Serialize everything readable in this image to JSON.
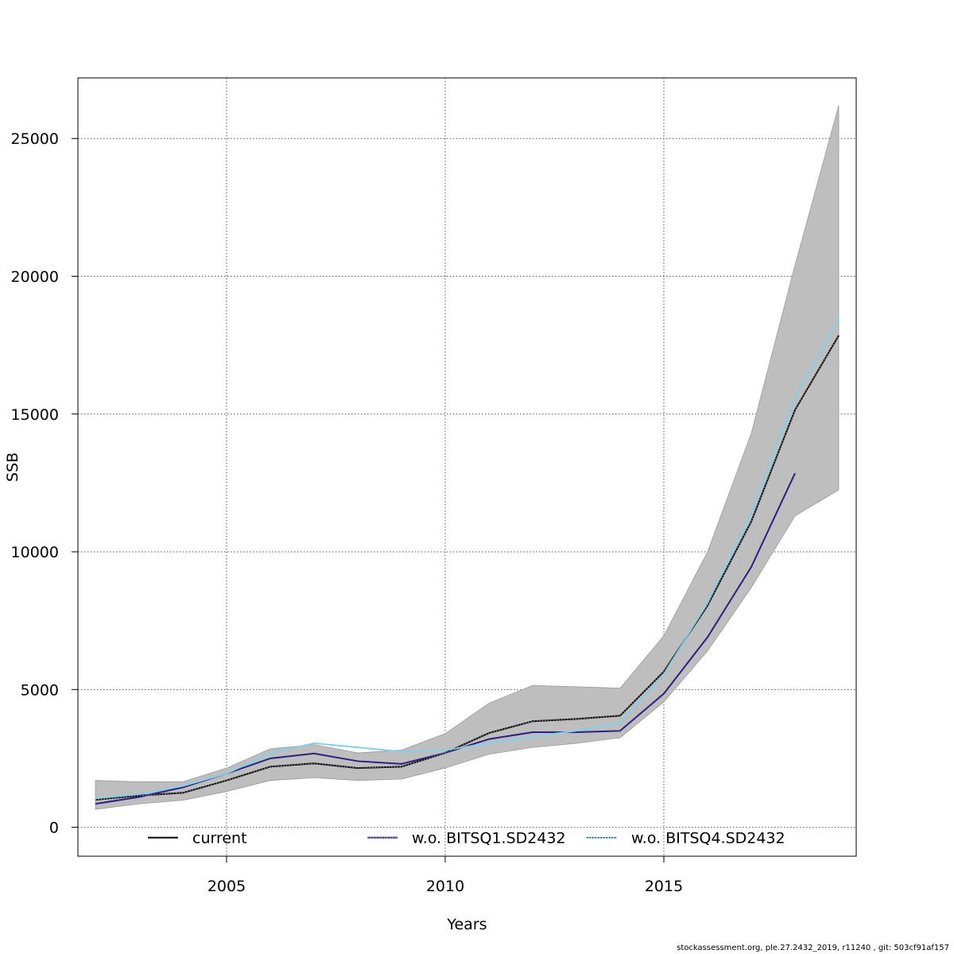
{
  "chart_data": {
    "type": "line",
    "title": "",
    "xlabel": "Years",
    "ylabel": "SSB",
    "xlim": [
      2001.6,
      2019.4
    ],
    "ylim": [
      -1050,
      27200
    ],
    "x_ticks": [
      2005,
      2010,
      2015
    ],
    "y_ticks": [
      0,
      5000,
      10000,
      15000,
      20000,
      25000
    ],
    "grid": true,
    "legend_position": "bottom",
    "colors": {
      "band": "#bebebe",
      "current": "#000000",
      "bitsq1": "#2d1e7f",
      "bitsq4": "#87ceeb",
      "grid": "#555555",
      "axis": "#000000"
    },
    "confidence_band": {
      "x": [
        2002,
        2003,
        2004,
        2005,
        2006,
        2007,
        2008,
        2009,
        2010,
        2011,
        2012,
        2013,
        2014,
        2015,
        2016,
        2017,
        2018,
        2019
      ],
      "lower": [
        650,
        850,
        980,
        1300,
        1700,
        1800,
        1700,
        1750,
        2150,
        2650,
        2900,
        3050,
        3250,
        4550,
        6400,
        8700,
        11300,
        12250
      ],
      "upper": [
        1700,
        1650,
        1650,
        2150,
        2850,
        3000,
        2700,
        2800,
        3400,
        4500,
        5150,
        5100,
        5050,
        6950,
        10000,
        14300,
        20400,
        26200
      ]
    },
    "series": [
      {
        "name": "current",
        "style": "solid",
        "x": [
          2002,
          2003,
          2004,
          2005,
          2006,
          2007,
          2008,
          2009,
          2010,
          2011,
          2012,
          2013,
          2014,
          2015,
          2016,
          2017,
          2018,
          2019
        ],
        "values": [
          1000,
          1150,
          1250,
          1700,
          2200,
          2320,
          2150,
          2200,
          2700,
          3420,
          3850,
          3930,
          4050,
          5650,
          8050,
          11100,
          15150,
          17850
        ]
      },
      {
        "name": "w.o. BITSQ1.SD2432",
        "style": "solid",
        "x": [
          2002,
          2003,
          2004,
          2005,
          2006,
          2007,
          2008,
          2009,
          2010,
          2011,
          2012,
          2013,
          2014,
          2015,
          2016,
          2017,
          2018
        ],
        "values": [
          850,
          1100,
          1450,
          1950,
          2500,
          2680,
          2400,
          2300,
          2700,
          3200,
          3450,
          3450,
          3500,
          4850,
          6900,
          9450,
          12850
        ]
      },
      {
        "name": "w.o. BITSQ4.SD2432",
        "style": "solid",
        "x": [
          2002,
          2003,
          2004,
          2005,
          2006,
          2007,
          2008,
          2009,
          2010,
          2011,
          2012,
          2013,
          2014,
          2015,
          2016,
          2017,
          2018,
          2019
        ],
        "values": [
          1050,
          1200,
          1500,
          1950,
          2700,
          3050,
          2900,
          2750,
          2800,
          3050,
          3300,
          3500,
          3800,
          5550,
          8150,
          11400,
          15600,
          18500
        ]
      }
    ],
    "legend": [
      {
        "label": "current"
      },
      {
        "label": "w.o. BITSQ1.SD2432"
      },
      {
        "label": "w.o. BITSQ4.SD2432"
      }
    ]
  },
  "footer_text": "stockassessment.org, ple.27.2432_2019, r11240 , git: 503cf91af157"
}
